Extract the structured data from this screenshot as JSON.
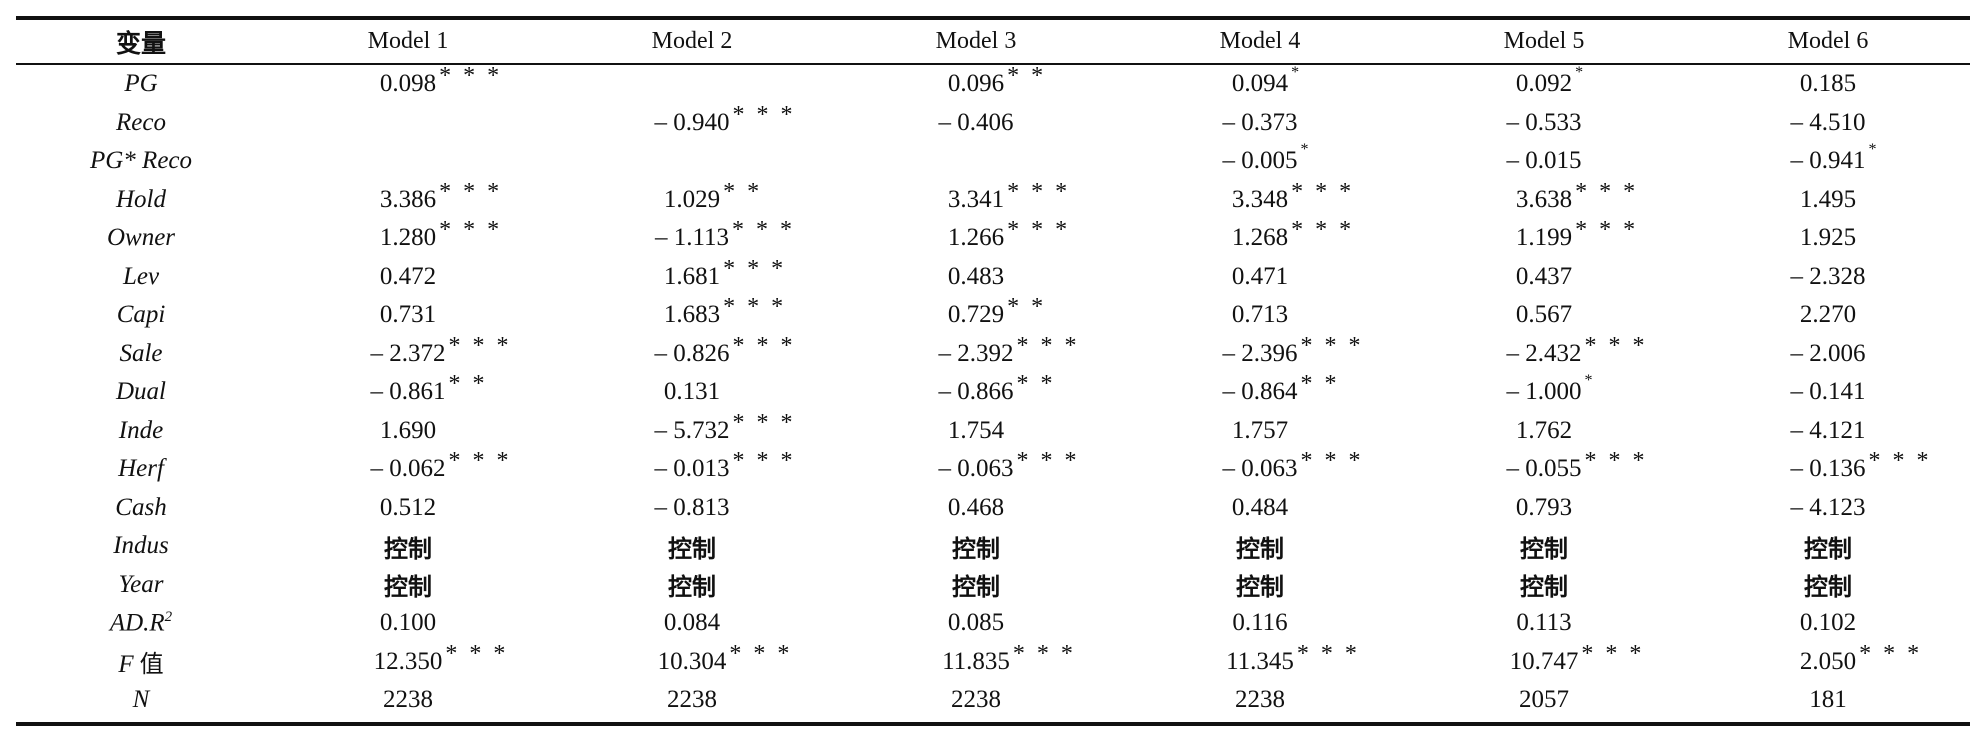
{
  "table": {
    "header": {
      "variable_label": "变量",
      "models": [
        "Model 1",
        "Model 2",
        "Model 3",
        "Model 4",
        "Model 5",
        "Model 6"
      ]
    },
    "rows": [
      {
        "label": "PG",
        "cells": [
          {
            "v": "0.098",
            "s": "* * *"
          },
          {
            "v": "",
            "s": ""
          },
          {
            "v": "0.096",
            "s": "* *"
          },
          {
            "v": "0.094",
            "s": "*"
          },
          {
            "v": "0.092",
            "s": "*"
          },
          {
            "v": "0.185",
            "s": ""
          }
        ]
      },
      {
        "label": "Reco",
        "cells": [
          {
            "v": "",
            "s": ""
          },
          {
            "v": "– 0.940",
            "s": "* * *"
          },
          {
            "v": "– 0.406",
            "s": ""
          },
          {
            "v": "– 0.373",
            "s": ""
          },
          {
            "v": "– 0.533",
            "s": ""
          },
          {
            "v": "– 4.510",
            "s": ""
          }
        ]
      },
      {
        "label": "PG* Reco",
        "cells": [
          {
            "v": "",
            "s": ""
          },
          {
            "v": "",
            "s": ""
          },
          {
            "v": "",
            "s": ""
          },
          {
            "v": "– 0.005",
            "s": "*"
          },
          {
            "v": "– 0.015",
            "s": ""
          },
          {
            "v": "– 0.941",
            "s": "*"
          }
        ]
      },
      {
        "label": "Hold",
        "cells": [
          {
            "v": "3.386",
            "s": "* * *"
          },
          {
            "v": "1.029",
            "s": "* *"
          },
          {
            "v": "3.341",
            "s": "* * *"
          },
          {
            "v": "3.348",
            "s": "* * *"
          },
          {
            "v": "3.638",
            "s": "* * *"
          },
          {
            "v": "1.495",
            "s": ""
          }
        ]
      },
      {
        "label": "Owner",
        "cells": [
          {
            "v": "1.280",
            "s": "* * *"
          },
          {
            "v": "– 1.113",
            "s": "* * *"
          },
          {
            "v": "1.266",
            "s": "* * *"
          },
          {
            "v": "1.268",
            "s": "* * *"
          },
          {
            "v": "1.199",
            "s": "* * *"
          },
          {
            "v": "1.925",
            "s": ""
          }
        ]
      },
      {
        "label": "Lev",
        "cells": [
          {
            "v": "0.472",
            "s": ""
          },
          {
            "v": "1.681",
            "s": "* * *"
          },
          {
            "v": "0.483",
            "s": ""
          },
          {
            "v": "0.471",
            "s": ""
          },
          {
            "v": "0.437",
            "s": ""
          },
          {
            "v": "– 2.328",
            "s": ""
          }
        ]
      },
      {
        "label": "Capi",
        "cells": [
          {
            "v": "0.731",
            "s": ""
          },
          {
            "v": "1.683",
            "s": "* * *"
          },
          {
            "v": "0.729",
            "s": "* *"
          },
          {
            "v": "0.713",
            "s": ""
          },
          {
            "v": "0.567",
            "s": ""
          },
          {
            "v": "2.270",
            "s": ""
          }
        ]
      },
      {
        "label": "Sale",
        "cells": [
          {
            "v": "– 2.372",
            "s": "* * *"
          },
          {
            "v": "– 0.826",
            "s": "* * *"
          },
          {
            "v": "– 2.392",
            "s": "* * *"
          },
          {
            "v": "– 2.396",
            "s": "* * *"
          },
          {
            "v": "– 2.432",
            "s": "* * *"
          },
          {
            "v": "– 2.006",
            "s": ""
          }
        ]
      },
      {
        "label": "Dual",
        "cells": [
          {
            "v": "– 0.861",
            "s": "* *"
          },
          {
            "v": "0.131",
            "s": ""
          },
          {
            "v": "– 0.866",
            "s": "* *"
          },
          {
            "v": "– 0.864",
            "s": "* *"
          },
          {
            "v": "– 1.000",
            "s": "*"
          },
          {
            "v": "– 0.141",
            "s": ""
          }
        ]
      },
      {
        "label": "Inde",
        "cells": [
          {
            "v": "1.690",
            "s": ""
          },
          {
            "v": "– 5.732",
            "s": "* * *"
          },
          {
            "v": "1.754",
            "s": ""
          },
          {
            "v": "1.757",
            "s": ""
          },
          {
            "v": "1.762",
            "s": ""
          },
          {
            "v": "– 4.121",
            "s": ""
          }
        ]
      },
      {
        "label": "Herf",
        "cells": [
          {
            "v": "– 0.062",
            "s": "* * *"
          },
          {
            "v": "– 0.013",
            "s": "* * *"
          },
          {
            "v": "– 0.063",
            "s": "* * *"
          },
          {
            "v": "– 0.063",
            "s": "* * *"
          },
          {
            "v": "– 0.055",
            "s": "* * *"
          },
          {
            "v": "– 0.136",
            "s": "* * *"
          }
        ]
      },
      {
        "label": "Cash",
        "cells": [
          {
            "v": "0.512",
            "s": ""
          },
          {
            "v": "– 0.813",
            "s": ""
          },
          {
            "v": "0.468",
            "s": ""
          },
          {
            "v": "0.484",
            "s": ""
          },
          {
            "v": "0.793",
            "s": ""
          },
          {
            "v": "– 4.123",
            "s": ""
          }
        ]
      },
      {
        "label": "Indus",
        "control": true,
        "cells": [
          {
            "v": "控制",
            "s": ""
          },
          {
            "v": "控制",
            "s": ""
          },
          {
            "v": "控制",
            "s": ""
          },
          {
            "v": "控制",
            "s": ""
          },
          {
            "v": "控制",
            "s": ""
          },
          {
            "v": "控制",
            "s": ""
          }
        ]
      },
      {
        "label": "Year",
        "control": true,
        "cells": [
          {
            "v": "控制",
            "s": ""
          },
          {
            "v": "控制",
            "s": ""
          },
          {
            "v": "控制",
            "s": ""
          },
          {
            "v": "控制",
            "s": ""
          },
          {
            "v": "控制",
            "s": ""
          },
          {
            "v": "控制",
            "s": ""
          }
        ]
      },
      {
        "label": "AD.R",
        "label_sup": "2",
        "cells": [
          {
            "v": "0.100",
            "s": ""
          },
          {
            "v": "0.084",
            "s": ""
          },
          {
            "v": "0.085",
            "s": ""
          },
          {
            "v": "0.116",
            "s": ""
          },
          {
            "v": "0.113",
            "s": ""
          },
          {
            "v": "0.102",
            "s": ""
          }
        ]
      },
      {
        "label": "F",
        "label_suffix": "值",
        "cells": [
          {
            "v": "12.350",
            "s": "* * *"
          },
          {
            "v": "10.304",
            "s": "* * *"
          },
          {
            "v": "11.835",
            "s": "* * *"
          },
          {
            "v": "11.345",
            "s": "* * *"
          },
          {
            "v": "10.747",
            "s": "* * *"
          },
          {
            "v": "2.050",
            "s": "* * *"
          }
        ]
      },
      {
        "label": "N",
        "cells": [
          {
            "v": "2238",
            "s": ""
          },
          {
            "v": "2238",
            "s": ""
          },
          {
            "v": "2238",
            "s": ""
          },
          {
            "v": "2238",
            "s": ""
          },
          {
            "v": "2057",
            "s": ""
          },
          {
            "v": "181",
            "s": ""
          }
        ]
      }
    ]
  }
}
